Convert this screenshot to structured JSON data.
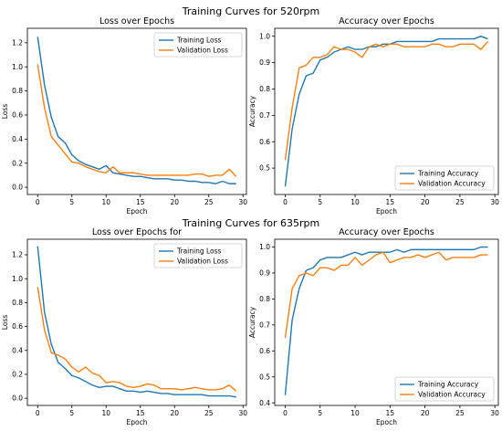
{
  "figure_titles": [
    "Training Curves for 520rpm",
    "Training Curves for 635rpm"
  ],
  "colors": {
    "training": "#1f77b4",
    "validation": "#ff7f0e"
  },
  "chart_data": [
    {
      "type": "line",
      "title": "Loss over Epochs",
      "xlabel": "Epoch",
      "ylabel": "Loss",
      "xlim": [
        -1.5,
        30.5
      ],
      "ylim": [
        -0.06,
        1.32
      ],
      "xticks": [
        0,
        5,
        10,
        15,
        20,
        25,
        30
      ],
      "yticks": [
        0.0,
        0.2,
        0.4,
        0.6,
        0.8,
        1.0,
        1.2
      ],
      "ytick_labels": [
        "0.0",
        "0.2",
        "0.4",
        "0.6",
        "0.8",
        "1.0",
        "1.2"
      ],
      "legend": "top-right",
      "x": [
        0,
        1,
        2,
        3,
        4,
        5,
        6,
        7,
        8,
        9,
        10,
        11,
        12,
        13,
        14,
        15,
        16,
        17,
        18,
        19,
        20,
        21,
        22,
        23,
        24,
        25,
        26,
        27,
        28,
        29
      ],
      "series": [
        {
          "name": "Training Loss",
          "values": [
            1.25,
            0.85,
            0.58,
            0.42,
            0.37,
            0.27,
            0.22,
            0.19,
            0.17,
            0.15,
            0.18,
            0.12,
            0.11,
            0.1,
            0.09,
            0.09,
            0.08,
            0.07,
            0.07,
            0.07,
            0.06,
            0.06,
            0.05,
            0.05,
            0.04,
            0.04,
            0.03,
            0.05,
            0.03,
            0.03
          ]
        },
        {
          "name": "Validation Loss",
          "values": [
            1.02,
            0.66,
            0.42,
            0.35,
            0.28,
            0.21,
            0.2,
            0.17,
            0.15,
            0.13,
            0.12,
            0.17,
            0.12,
            0.12,
            0.12,
            0.11,
            0.1,
            0.1,
            0.1,
            0.1,
            0.1,
            0.1,
            0.1,
            0.11,
            0.11,
            0.09,
            0.1,
            0.1,
            0.15,
            0.09
          ]
        }
      ]
    },
    {
      "type": "line",
      "title": "Accuracy over Epochs",
      "xlabel": "Epoch",
      "ylabel": "Accuracy",
      "xlim": [
        -1.5,
        30.5
      ],
      "ylim": [
        0.4,
        1.03
      ],
      "xticks": [
        0,
        5,
        10,
        15,
        20,
        25,
        30
      ],
      "yticks": [
        0.5,
        0.6,
        0.7,
        0.8,
        0.9,
        1.0
      ],
      "ytick_labels": [
        "0.5",
        "0.6",
        "0.7",
        "0.8",
        "0.9",
        "1.0"
      ],
      "legend": "bottom-right",
      "x": [
        0,
        1,
        2,
        3,
        4,
        5,
        6,
        7,
        8,
        9,
        10,
        11,
        12,
        13,
        14,
        15,
        16,
        17,
        18,
        19,
        20,
        21,
        22,
        23,
        24,
        25,
        26,
        27,
        28,
        29
      ],
      "series": [
        {
          "name": "Training Accuracy",
          "values": [
            0.43,
            0.65,
            0.78,
            0.85,
            0.86,
            0.91,
            0.92,
            0.94,
            0.95,
            0.96,
            0.95,
            0.95,
            0.96,
            0.96,
            0.97,
            0.97,
            0.98,
            0.98,
            0.98,
            0.98,
            0.98,
            0.98,
            0.99,
            0.99,
            0.99,
            0.99,
            0.99,
            0.99,
            1.0,
            0.99
          ]
        },
        {
          "name": "Validation Accuracy",
          "values": [
            0.53,
            0.73,
            0.88,
            0.89,
            0.92,
            0.92,
            0.93,
            0.96,
            0.95,
            0.95,
            0.94,
            0.92,
            0.96,
            0.97,
            0.96,
            0.97,
            0.97,
            0.96,
            0.96,
            0.96,
            0.96,
            0.97,
            0.97,
            0.96,
            0.96,
            0.97,
            0.97,
            0.97,
            0.95,
            0.98
          ]
        }
      ]
    },
    {
      "type": "line",
      "title": "Loss over Epochs for",
      "xlabel": "Epoch",
      "ylabel": "Loss",
      "xlim": [
        -1.5,
        30.5
      ],
      "ylim": [
        -0.06,
        1.33
      ],
      "xticks": [
        0,
        5,
        10,
        15,
        20,
        25,
        30
      ],
      "yticks": [
        0.0,
        0.2,
        0.4,
        0.6,
        0.8,
        1.0,
        1.2
      ],
      "ytick_labels": [
        "0.0",
        "0.2",
        "0.4",
        "0.6",
        "0.8",
        "1.0",
        "1.2"
      ],
      "legend": "top-right",
      "x": [
        0,
        1,
        2,
        3,
        4,
        5,
        6,
        7,
        8,
        9,
        10,
        11,
        12,
        13,
        14,
        15,
        16,
        17,
        18,
        19,
        20,
        21,
        22,
        23,
        24,
        25,
        26,
        27,
        28,
        29
      ],
      "series": [
        {
          "name": "Training Loss",
          "values": [
            1.27,
            0.72,
            0.45,
            0.3,
            0.25,
            0.19,
            0.17,
            0.14,
            0.11,
            0.09,
            0.1,
            0.1,
            0.08,
            0.06,
            0.06,
            0.05,
            0.06,
            0.05,
            0.04,
            0.04,
            0.03,
            0.03,
            0.03,
            0.03,
            0.03,
            0.02,
            0.02,
            0.02,
            0.02,
            0.01
          ]
        },
        {
          "name": "Validation Loss",
          "values": [
            0.93,
            0.57,
            0.38,
            0.36,
            0.33,
            0.26,
            0.22,
            0.26,
            0.21,
            0.19,
            0.13,
            0.14,
            0.13,
            0.1,
            0.09,
            0.1,
            0.12,
            0.11,
            0.08,
            0.08,
            0.08,
            0.07,
            0.08,
            0.09,
            0.08,
            0.07,
            0.07,
            0.08,
            0.11,
            0.06
          ]
        }
      ]
    },
    {
      "type": "line",
      "title": "Accuracy over Epochs",
      "xlabel": "Epoch",
      "ylabel": "Accuracy",
      "xlim": [
        -1.5,
        30.5
      ],
      "ylim": [
        0.39,
        1.03
      ],
      "xticks": [
        0,
        5,
        10,
        15,
        20,
        25,
        30
      ],
      "yticks": [
        0.4,
        0.5,
        0.6,
        0.7,
        0.8,
        0.9,
        1.0
      ],
      "ytick_labels": [
        "0.4",
        "0.5",
        "0.6",
        "0.7",
        "0.8",
        "0.9",
        "1.0"
      ],
      "legend": "bottom-right",
      "x": [
        0,
        1,
        2,
        3,
        4,
        5,
        6,
        7,
        8,
        9,
        10,
        11,
        12,
        13,
        14,
        15,
        16,
        17,
        18,
        19,
        20,
        21,
        22,
        23,
        24,
        25,
        26,
        27,
        28,
        29
      ],
      "series": [
        {
          "name": "Training Accuracy",
          "values": [
            0.43,
            0.72,
            0.84,
            0.91,
            0.92,
            0.95,
            0.96,
            0.96,
            0.96,
            0.97,
            0.98,
            0.97,
            0.98,
            0.98,
            0.98,
            0.98,
            0.99,
            0.98,
            0.99,
            0.99,
            0.99,
            0.99,
            0.99,
            0.99,
            0.99,
            0.99,
            0.99,
            0.99,
            1.0,
            1.0
          ]
        },
        {
          "name": "Validation Accuracy",
          "values": [
            0.65,
            0.84,
            0.89,
            0.9,
            0.89,
            0.92,
            0.92,
            0.91,
            0.93,
            0.93,
            0.96,
            0.93,
            0.95,
            0.97,
            0.98,
            0.94,
            0.95,
            0.96,
            0.96,
            0.97,
            0.96,
            0.97,
            0.98,
            0.95,
            0.96,
            0.96,
            0.96,
            0.96,
            0.97,
            0.97
          ]
        }
      ]
    }
  ]
}
